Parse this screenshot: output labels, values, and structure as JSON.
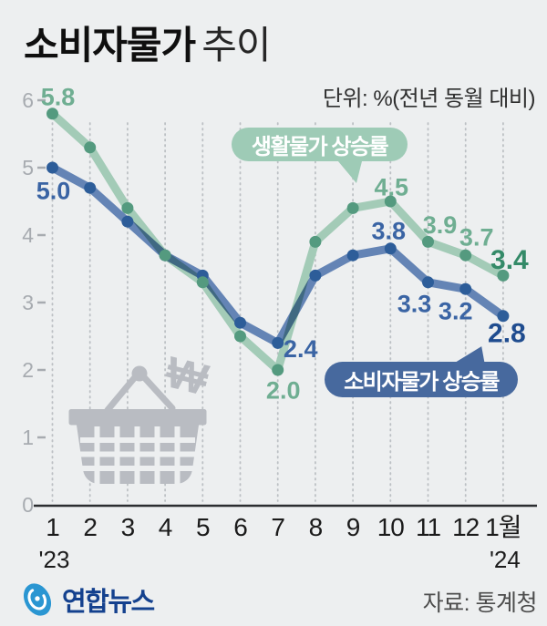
{
  "title": {
    "emphasis": "소비자물가",
    "rest": "추이"
  },
  "unit_label": "단위: %(전년 동월 대비)",
  "annotations": {
    "green_bubble": "생활물가 상승률",
    "blue_bubble": "소비자물가 상승률"
  },
  "basket_icon": {
    "currency_symbol": "₩"
  },
  "footer": {
    "agency": "연합뉴스",
    "source": "자료: 통계청"
  },
  "colors": {
    "background": "#edeff0",
    "green_line": "#a3cbb7",
    "green_dot": "#549a7f",
    "green_label": "#6fae92",
    "green_label_bold": "#348a68",
    "green_bubble": "#9ecbb6",
    "blue_line": "#6484b5",
    "blue_dot": "#2d5d99",
    "blue_label": "#3a64a4",
    "blue_label_bold": "#1f4c8f",
    "blue_bubble": "#47699e",
    "axis": "#2b2d30",
    "grid": "#bcc0c4",
    "y_tick_text": "#a7abb0",
    "x_tick_text": "#1b1b1b",
    "basket": "#b9bcc2"
  },
  "chart_data": {
    "type": "line",
    "title": "소비자물가 추이",
    "unit": "%(전년 동월 대비)",
    "x_labels": [
      "1",
      "2",
      "3",
      "4",
      "5",
      "6",
      "7",
      "8",
      "9",
      "10",
      "11",
      "12",
      "1월"
    ],
    "year_labels": [
      {
        "text": "'23",
        "index": 0
      },
      {
        "text": "'24",
        "index": 12
      }
    ],
    "y_ticks": [
      0,
      1,
      2,
      3,
      4,
      5,
      6
    ],
    "ylim": [
      0,
      6
    ],
    "grid": "dotted-vertical",
    "legend_position": "inline-bubbles",
    "series": [
      {
        "name": "생활물가 상승률",
        "key": "green",
        "values": [
          5.8,
          5.3,
          4.4,
          3.7,
          3.3,
          2.5,
          2.0,
          3.9,
          4.4,
          4.5,
          3.9,
          3.7,
          3.4
        ],
        "point_labels": [
          {
            "index": 0,
            "text": "5.8"
          },
          {
            "index": 6,
            "text": "2.0"
          },
          {
            "index": 9,
            "text": "4.5"
          },
          {
            "index": 10,
            "text": "3.9"
          },
          {
            "index": 11,
            "text": "3.7"
          },
          {
            "index": 12,
            "text": "3.4",
            "bold": true
          }
        ]
      },
      {
        "name": "소비자물가 상승률",
        "key": "blue",
        "values": [
          5.0,
          4.7,
          4.2,
          3.7,
          3.4,
          2.7,
          2.4,
          3.4,
          3.7,
          3.8,
          3.3,
          3.2,
          2.8
        ],
        "point_labels": [
          {
            "index": 0,
            "text": "5.0"
          },
          {
            "index": 6,
            "text": "2.4"
          },
          {
            "index": 9,
            "text": "3.8"
          },
          {
            "index": 10,
            "text": "3.3"
          },
          {
            "index": 11,
            "text": "3.2"
          },
          {
            "index": 12,
            "text": "2.8",
            "bold": true
          }
        ]
      }
    ]
  }
}
